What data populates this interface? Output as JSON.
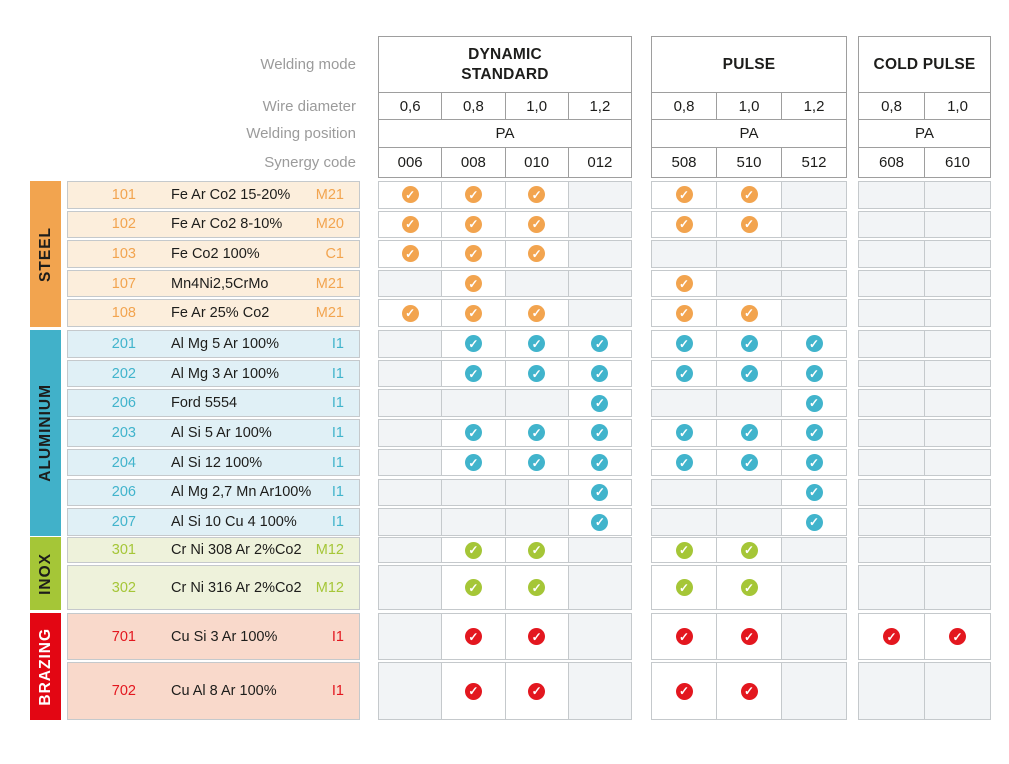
{
  "header": {
    "row_labels": [
      "Welding mode",
      "Wire diameter",
      "Welding position",
      "Synergy code"
    ],
    "groups": [
      {
        "key": "dynamic_standard",
        "title": "DYNAMIC\nSTANDARD",
        "diameters": [
          "0,6",
          "0,8",
          "1,0",
          "1,2"
        ],
        "position": "PA",
        "codes": [
          "006",
          "008",
          "010",
          "012"
        ]
      },
      {
        "key": "pulse",
        "title": "PULSE",
        "diameters": [
          "0,8",
          "1,0",
          "1,2"
        ],
        "position": "PA",
        "codes": [
          "508",
          "510",
          "512"
        ]
      },
      {
        "key": "cold_pulse",
        "title": "COLD PULSE",
        "diameters": [
          "0,8",
          "1,0"
        ],
        "position": "PA",
        "codes": [
          "608",
          "610"
        ]
      }
    ]
  },
  "colors": {
    "steel": "#F2A44F",
    "aluminium": "#41B1C9",
    "inox": "#A5C637",
    "brazing": "#E30613"
  },
  "categories": [
    {
      "name": "STEEL",
      "bar_color": "#F2A44F",
      "bar_text": "#1d1d1b",
      "row_bg": "#FCEEDC",
      "accent": "#F2A44F",
      "rows": [
        {
          "code": "101",
          "name": "Fe Ar Co2 15-20%",
          "gas_class": "M21",
          "marks": {
            "dynamic_standard": [
              1,
              1,
              1,
              0
            ],
            "pulse": [
              1,
              1,
              0
            ],
            "cold_pulse": [
              0,
              0
            ]
          }
        },
        {
          "code": "102",
          "name": "Fe Ar Co2 8-10%",
          "gas_class": "M20",
          "marks": {
            "dynamic_standard": [
              1,
              1,
              1,
              0
            ],
            "pulse": [
              1,
              1,
              0
            ],
            "cold_pulse": [
              0,
              0
            ]
          }
        },
        {
          "code": "103",
          "name": "Fe Co2 100%",
          "gas_class": "C1",
          "marks": {
            "dynamic_standard": [
              1,
              1,
              1,
              0
            ],
            "pulse": [
              0,
              0,
              0
            ],
            "cold_pulse": [
              0,
              0
            ]
          }
        },
        {
          "code": "107",
          "name": "Mn4Ni2,5CrMo",
          "gas_class": "M21",
          "marks": {
            "dynamic_standard": [
              0,
              1,
              0,
              0
            ],
            "pulse": [
              1,
              0,
              0
            ],
            "cold_pulse": [
              0,
              0
            ]
          }
        },
        {
          "code": "108",
          "name": "Fe Ar 25% Co2",
          "gas_class": "M21",
          "marks": {
            "dynamic_standard": [
              1,
              1,
              1,
              0
            ],
            "pulse": [
              1,
              1,
              0
            ],
            "cold_pulse": [
              0,
              0
            ]
          }
        }
      ]
    },
    {
      "name": "ALUMINIUM",
      "bar_color": "#41B1C9",
      "bar_text": "#1d1d1b",
      "row_bg": "#E0F0F6",
      "accent": "#41B4CC",
      "rows": [
        {
          "code": "201",
          "name": "Al Mg 5 Ar 100%",
          "gas_class": "I1",
          "marks": {
            "dynamic_standard": [
              0,
              1,
              1,
              1
            ],
            "pulse": [
              1,
              1,
              1
            ],
            "cold_pulse": [
              0,
              0
            ]
          }
        },
        {
          "code": "202",
          "name": "Al Mg 3 Ar 100%",
          "gas_class": "I1",
          "marks": {
            "dynamic_standard": [
              0,
              1,
              1,
              1
            ],
            "pulse": [
              1,
              1,
              1
            ],
            "cold_pulse": [
              0,
              0
            ]
          }
        },
        {
          "code": "206",
          "name": "Ford 5554",
          "gas_class": "I1",
          "marks": {
            "dynamic_standard": [
              0,
              0,
              0,
              1
            ],
            "pulse": [
              0,
              0,
              1
            ],
            "cold_pulse": [
              0,
              0
            ]
          }
        },
        {
          "code": "203",
          "name": "Al Si 5 Ar 100%",
          "gas_class": "I1",
          "marks": {
            "dynamic_standard": [
              0,
              1,
              1,
              1
            ],
            "pulse": [
              1,
              1,
              1
            ],
            "cold_pulse": [
              0,
              0
            ]
          }
        },
        {
          "code": "204",
          "name": "Al Si 12 100%",
          "gas_class": "I1",
          "marks": {
            "dynamic_standard": [
              0,
              1,
              1,
              1
            ],
            "pulse": [
              1,
              1,
              1
            ],
            "cold_pulse": [
              0,
              0
            ]
          }
        },
        {
          "code": "206",
          "name": "Al Mg 2,7 Mn Ar100%",
          "gas_class": "I1",
          "marks": {
            "dynamic_standard": [
              0,
              0,
              0,
              1
            ],
            "pulse": [
              0,
              0,
              1
            ],
            "cold_pulse": [
              0,
              0
            ]
          }
        },
        {
          "code": "207",
          "name": "Al Si 10 Cu 4 100%",
          "gas_class": "I1",
          "marks": {
            "dynamic_standard": [
              0,
              0,
              0,
              1
            ],
            "pulse": [
              0,
              0,
              1
            ],
            "cold_pulse": [
              0,
              0
            ]
          }
        }
      ]
    },
    {
      "name": "INOX",
      "bar_color": "#A5C637",
      "bar_text": "#1d1d1b",
      "row_bg": "#EEF2DB",
      "accent": "#A5C637",
      "rows": [
        {
          "code": "301",
          "name": "Cr Ni 308 Ar 2%Co2",
          "gas_class": "M12",
          "marks": {
            "dynamic_standard": [
              0,
              1,
              1,
              0
            ],
            "pulse": [
              1,
              1,
              0
            ],
            "cold_pulse": [
              0,
              0
            ]
          }
        },
        {
          "code": "302",
          "name": "Cr Ni 316 Ar 2%Co2",
          "gas_class": "M12",
          "marks": {
            "dynamic_standard": [
              0,
              1,
              1,
              0
            ],
            "pulse": [
              1,
              1,
              0
            ],
            "cold_pulse": [
              0,
              0
            ]
          }
        }
      ]
    },
    {
      "name": "BRAZING",
      "bar_color": "#E30613",
      "bar_text": "#ffffff",
      "row_bg": "#F9D9CB",
      "accent": "#E3171F",
      "rows": [
        {
          "code": "701",
          "name": "Cu Si 3 Ar 100%",
          "gas_class": "I1",
          "marks": {
            "dynamic_standard": [
              0,
              1,
              1,
              0
            ],
            "pulse": [
              1,
              1,
              0
            ],
            "cold_pulse": [
              1,
              1
            ]
          }
        },
        {
          "code": "702",
          "name": "Cu Al 8 Ar 100%",
          "gas_class": "I1",
          "marks": {
            "dynamic_standard": [
              0,
              1,
              1,
              0
            ],
            "pulse": [
              1,
              1,
              0
            ],
            "cold_pulse": [
              0,
              0
            ]
          }
        }
      ]
    }
  ],
  "check_icon": "✓"
}
